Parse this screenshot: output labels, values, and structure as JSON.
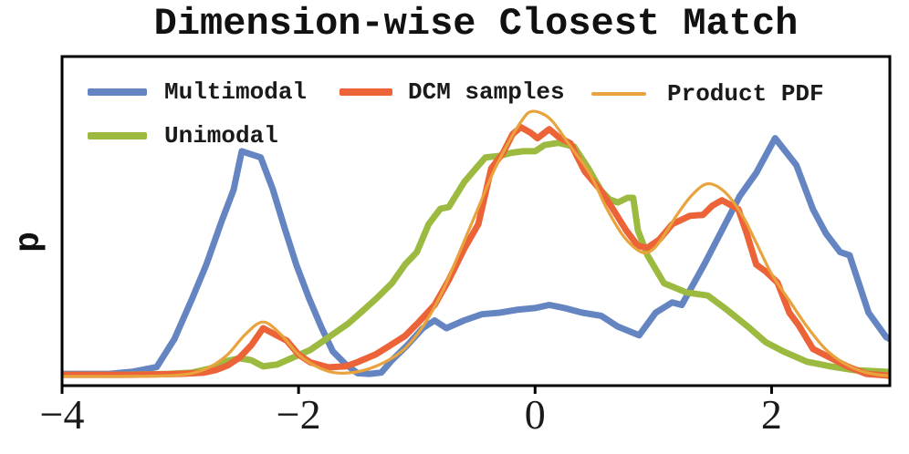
{
  "chart_data": {
    "type": "line",
    "title": "Dimension-wise Closest Match",
    "xlabel": "",
    "ylabel": "p",
    "axes": {
      "xlim": [
        -4,
        3
      ],
      "ylim": [
        0,
        1.06
      ],
      "xticks": {
        "values": [
          -4,
          -2,
          0,
          2
        ],
        "labels": [
          "−4",
          "−2",
          "0",
          "2"
        ]
      },
      "yticks": [],
      "grid": false,
      "spine_color": "#000000"
    },
    "legend": {
      "position": "upper-left-inside",
      "entries": [
        "Multimodal",
        "Unimodal",
        "DCM samples",
        "Product PDF"
      ]
    },
    "series": [
      {
        "name": "Multimodal",
        "color": "#6485C1",
        "width": 7,
        "smooth": false,
        "x": [
          -4.0,
          -3.6,
          -3.4,
          -3.2,
          -3.05,
          -2.9,
          -2.78,
          -2.65,
          -2.55,
          -2.48,
          -2.4,
          -2.32,
          -2.22,
          -2.12,
          -2.02,
          -1.91,
          -1.81,
          -1.71,
          -1.6,
          -1.5,
          -1.4,
          -1.3,
          -1.21,
          -1.08,
          -0.95,
          -0.85,
          -0.75,
          -0.6,
          -0.45,
          -0.3,
          -0.14,
          0.0,
          0.12,
          0.25,
          0.4,
          0.56,
          0.7,
          0.88,
          1.02,
          1.16,
          1.24,
          1.43,
          1.58,
          1.73,
          1.87,
          2.03,
          2.21,
          2.35,
          2.46,
          2.58,
          2.66,
          2.82,
          2.97,
          3.0
        ],
        "y": [
          0.038,
          0.038,
          0.045,
          0.06,
          0.15,
          0.28,
          0.39,
          0.53,
          0.63,
          0.755,
          0.745,
          0.735,
          0.635,
          0.51,
          0.39,
          0.28,
          0.19,
          0.11,
          0.068,
          0.04,
          0.038,
          0.042,
          0.082,
          0.13,
          0.185,
          0.21,
          0.185,
          0.21,
          0.23,
          0.235,
          0.245,
          0.25,
          0.26,
          0.25,
          0.235,
          0.225,
          0.19,
          0.162,
          0.235,
          0.268,
          0.26,
          0.39,
          0.5,
          0.61,
          0.685,
          0.797,
          0.71,
          0.568,
          0.49,
          0.43,
          0.42,
          0.235,
          0.156,
          0.15
        ]
      },
      {
        "name": "Unimodal",
        "color": "#9BBA3F",
        "width": 7,
        "smooth": false,
        "x": [
          -4.0,
          -3.5,
          -3.1,
          -2.9,
          -2.75,
          -2.6,
          -2.5,
          -2.4,
          -2.3,
          -2.18,
          -2.05,
          -1.9,
          -1.73,
          -1.58,
          -1.46,
          -1.33,
          -1.21,
          -1.1,
          -1.0,
          -0.9,
          -0.8,
          -0.73,
          -0.6,
          -0.5,
          -0.42,
          -0.3,
          -0.2,
          -0.1,
          0.0,
          0.08,
          0.2,
          0.33,
          0.45,
          0.56,
          0.63,
          0.7,
          0.78,
          0.83,
          0.87,
          0.95,
          1.09,
          1.28,
          1.46,
          1.62,
          1.8,
          1.95,
          2.1,
          2.3,
          2.5,
          2.7,
          2.85,
          3.0
        ],
        "y": [
          0.035,
          0.035,
          0.038,
          0.042,
          0.055,
          0.08,
          0.088,
          0.082,
          0.062,
          0.068,
          0.09,
          0.115,
          0.16,
          0.2,
          0.24,
          0.285,
          0.33,
          0.39,
          0.43,
          0.52,
          0.57,
          0.575,
          0.655,
          0.7,
          0.735,
          0.74,
          0.75,
          0.755,
          0.755,
          0.775,
          0.782,
          0.77,
          0.7,
          0.627,
          0.6,
          0.59,
          0.605,
          0.605,
          0.5,
          0.42,
          0.33,
          0.3,
          0.29,
          0.245,
          0.19,
          0.14,
          0.11,
          0.077,
          0.062,
          0.05,
          0.047,
          0.044
        ]
      },
      {
        "name": "DCM samples",
        "color": "#EC6338",
        "width": 7,
        "smooth": false,
        "x": [
          -4.0,
          -3.4,
          -3.0,
          -2.8,
          -2.7,
          -2.6,
          -2.5,
          -2.4,
          -2.3,
          -2.2,
          -2.1,
          -2.0,
          -1.9,
          -1.75,
          -1.6,
          -1.5,
          -1.35,
          -1.24,
          -1.1,
          -0.98,
          -0.85,
          -0.73,
          -0.6,
          -0.48,
          -0.37,
          -0.27,
          -0.19,
          -0.12,
          -0.04,
          0.02,
          0.12,
          0.2,
          0.3,
          0.42,
          0.56,
          0.66,
          0.77,
          0.87,
          0.95,
          1.05,
          1.16,
          1.31,
          1.42,
          1.5,
          1.58,
          1.72,
          1.79,
          1.87,
          1.95,
          2.05,
          2.15,
          2.23,
          2.35,
          2.49,
          2.64,
          2.8,
          3.0
        ],
        "y": [
          0.035,
          0.035,
          0.038,
          0.042,
          0.05,
          0.065,
          0.09,
          0.13,
          0.185,
          0.165,
          0.145,
          0.1,
          0.075,
          0.059,
          0.062,
          0.076,
          0.1,
          0.126,
          0.16,
          0.206,
          0.26,
          0.34,
          0.44,
          0.52,
          0.7,
          0.75,
          0.81,
          0.832,
          0.815,
          0.797,
          0.826,
          0.8,
          0.78,
          0.69,
          0.627,
          0.568,
          0.5,
          0.45,
          0.444,
          0.47,
          0.52,
          0.547,
          0.55,
          0.58,
          0.597,
          0.568,
          0.49,
          0.39,
          0.368,
          0.332,
          0.235,
          0.194,
          0.118,
          0.091,
          0.062,
          0.038,
          0.032
        ]
      },
      {
        "name": "Product PDF",
        "color": "#E8A33C",
        "width": 3.2,
        "smooth": true,
        "x": [
          -4.0,
          -3.5,
          -3.1,
          -2.9,
          -2.75,
          -2.6,
          -2.45,
          -2.3,
          -2.15,
          -2.0,
          -1.85,
          -1.7,
          -1.55,
          -1.4,
          -1.25,
          -1.1,
          -0.95,
          -0.8,
          -0.65,
          -0.5,
          -0.35,
          -0.2,
          -0.1,
          -0.04,
          0.05,
          0.15,
          0.3,
          0.46,
          0.6,
          0.75,
          0.9,
          1.0,
          1.1,
          1.2,
          1.33,
          1.46,
          1.6,
          1.75,
          1.87,
          2.0,
          2.15,
          2.3,
          2.45,
          2.6,
          2.75,
          2.9,
          3.0
        ],
        "y": [
          0.03,
          0.03,
          0.032,
          0.04,
          0.06,
          0.1,
          0.165,
          0.205,
          0.165,
          0.1,
          0.062,
          0.042,
          0.042,
          0.055,
          0.08,
          0.12,
          0.19,
          0.29,
          0.42,
          0.555,
          0.69,
          0.8,
          0.86,
          0.882,
          0.878,
          0.85,
          0.77,
          0.685,
          0.575,
          0.48,
          0.43,
          0.44,
          0.49,
          0.55,
          0.615,
          0.65,
          0.625,
          0.55,
          0.46,
          0.36,
          0.274,
          0.19,
          0.12,
          0.075,
          0.048,
          0.035,
          0.032
        ]
      }
    ]
  }
}
